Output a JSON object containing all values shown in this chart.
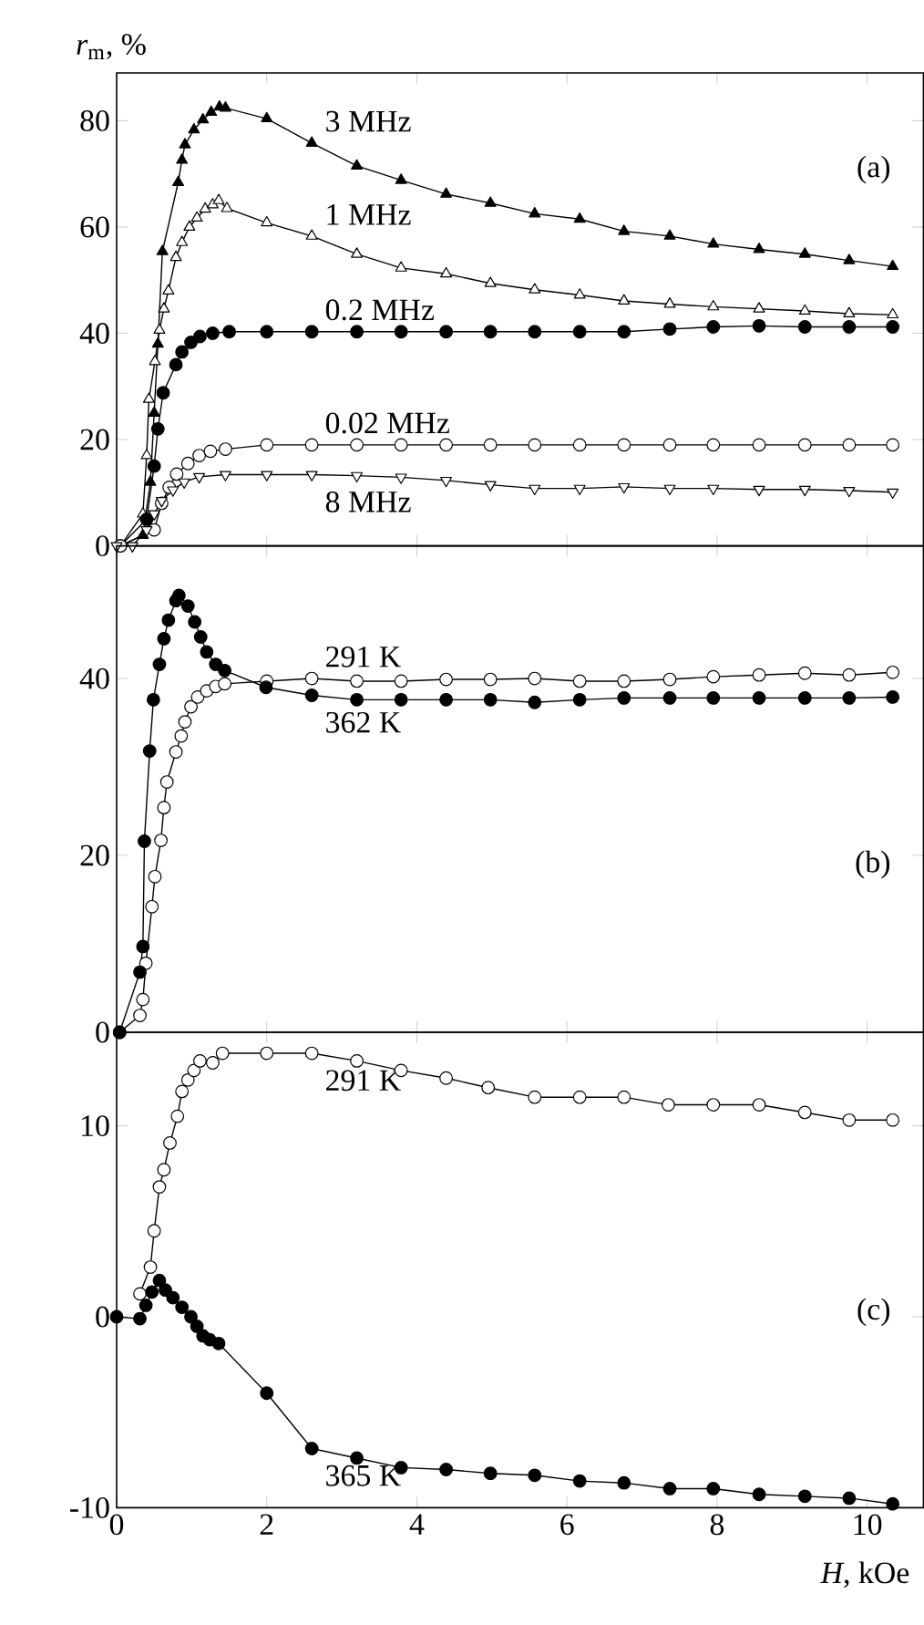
{
  "chart_data": [
    {
      "type": "line",
      "ylabel": "*r*$_{m}$, %",
      "annotations": [
        "(a)"
      ],
      "xlim": [
        0,
        10.75
      ],
      "xticks": [
        0,
        2,
        4,
        6,
        8,
        10
      ],
      "ylim": [
        0,
        89
      ],
      "yticks": [
        0,
        20,
        40,
        60,
        80
      ],
      "tick_labels": "y",
      "series": [
        {
          "name": "3 MHz",
          "color": "#000000",
          "marker": "triangle",
          "x": [
            0.05,
            0.35,
            0.45,
            0.5,
            0.55,
            0.61,
            0.82,
            0.87,
            0.91,
            1.03,
            1.15,
            1.26,
            1.37,
            1.45,
            2.0,
            2.6,
            3.2,
            3.79,
            4.39,
            4.98,
            5.57,
            6.17,
            6.76,
            7.37,
            7.95,
            8.56,
            9.17,
            9.76,
            10.34
          ],
          "values": [
            0,
            2,
            12,
            25,
            38,
            55.4,
            68.4,
            72.6,
            75.5,
            78.3,
            80.2,
            81.6,
            82.6,
            82.4,
            80.4,
            75.8,
            71.5,
            68.8,
            66.2,
            64.5,
            62.5,
            61.5,
            59.2,
            58.3,
            56.8,
            55.8,
            54.9,
            53.7,
            52.6
          ]
        },
        {
          "name": "1 MHz",
          "color": "#000000",
          "marker": "triangle-open",
          "x": [
            0.05,
            0.35,
            0.4,
            0.43,
            0.51,
            0.57,
            0.63,
            0.69,
            0.79,
            0.87,
            0.97,
            1.07,
            1.18,
            1.28,
            1.36,
            1.47,
            2.0,
            2.6,
            3.2,
            3.79,
            4.39,
            4.98,
            5.57,
            6.17,
            6.76,
            7.37,
            7.95,
            8.56,
            9.17,
            9.76,
            10.34
          ],
          "values": [
            0,
            6,
            17,
            27.6,
            34.7,
            40.6,
            44.6,
            48.0,
            54.3,
            57.1,
            60,
            61.7,
            63.4,
            64.2,
            65,
            63.5,
            60.8,
            58.3,
            54.9,
            52.3,
            51.2,
            49.4,
            48.2,
            47.2,
            46.1,
            45.5,
            45.0,
            44.6,
            44.2,
            43.7,
            43.5
          ]
        },
        {
          "name": "0.2 MHz",
          "color": "#000000",
          "marker": "circle",
          "x": [
            0.05,
            0.4,
            0.5,
            0.55,
            0.62,
            0.79,
            0.87,
            0.99,
            1.11,
            1.28,
            1.5,
            2.0,
            2.6,
            3.2,
            3.79,
            4.39,
            4.98,
            5.57,
            6.17,
            6.76,
            7.37,
            7.95,
            8.56,
            9.17,
            9.76,
            10.34
          ],
          "values": [
            0,
            5,
            15,
            22,
            28.8,
            34.1,
            36.5,
            38.3,
            39.4,
            40,
            40.3,
            40.3,
            40.3,
            40.3,
            40.3,
            40.3,
            40.3,
            40.3,
            40.3,
            40.3,
            40.8,
            41.2,
            41.4,
            41.2,
            41.2,
            41.2
          ]
        },
        {
          "name": "0.02 MHz",
          "color": "#000000",
          "marker": "circle-open",
          "x": [
            0.05,
            0.5,
            0.6,
            0.7,
            0.8,
            0.95,
            1.1,
            1.25,
            1.45,
            2.0,
            2.6,
            3.2,
            3.79,
            4.39,
            4.98,
            5.57,
            6.17,
            6.76,
            7.37,
            7.95,
            8.56,
            9.17,
            9.76,
            10.34
          ],
          "values": [
            0,
            3,
            8,
            11,
            13.5,
            15.5,
            17,
            17.8,
            18.2,
            19,
            19,
            19,
            19,
            19,
            19,
            19,
            19,
            19,
            19,
            19,
            19,
            19,
            19,
            19
          ]
        },
        {
          "name": "8 MHz",
          "color": "#000000",
          "marker": "triangle-down-open",
          "x": [
            0.0,
            0.21,
            0.4,
            0.5,
            0.6,
            0.75,
            0.9,
            1.1,
            1.45,
            2.0,
            2.6,
            3.2,
            3.79,
            4.39,
            4.98,
            5.57,
            6.17,
            6.76,
            7.37,
            7.95,
            8.56,
            9.17,
            9.76,
            10.34
          ],
          "values": [
            0,
            0,
            3,
            6,
            8.5,
            10.5,
            12,
            13,
            13.4,
            13.4,
            13.4,
            13.2,
            12.9,
            12.3,
            11.5,
            10.8,
            10.8,
            11.1,
            10.8,
            10.8,
            10.6,
            10.6,
            10.4,
            10.1
          ]
        }
      ]
    },
    {
      "type": "line",
      "annotations": [
        "(b)"
      ],
      "xlim": [
        0,
        10.75
      ],
      "xticks": [
        0,
        2,
        4,
        6,
        8,
        10
      ],
      "ylim": [
        0,
        55
      ],
      "yticks": [
        0,
        20,
        40
      ],
      "tick_labels": "y",
      "series": [
        {
          "name": "291 K",
          "color": "#000000",
          "marker": "circle-open",
          "x": [
            0.04,
            0.31,
            0.35,
            0.39,
            0.47,
            0.51,
            0.59,
            0.63,
            0.67,
            0.79,
            0.86,
            0.91,
            0.99,
            1.08,
            1.2,
            1.32,
            1.44,
            2.0,
            2.6,
            3.2,
            3.79,
            4.39,
            4.98,
            5.57,
            6.17,
            6.76,
            7.37,
            7.95,
            8.56,
            9.17,
            9.76,
            10.34
          ],
          "values": [
            0,
            1.9,
            3.7,
            7.8,
            14.2,
            17.6,
            21.7,
            25.4,
            28.3,
            31.7,
            33.5,
            35.1,
            36.8,
            37.9,
            38.6,
            39.1,
            39.4,
            39.7,
            40,
            39.7,
            39.7,
            39.9,
            39.9,
            40,
            39.7,
            39.7,
            39.9,
            40.2,
            40.4,
            40.6,
            40.4,
            40.7
          ]
        },
        {
          "name": "362 K",
          "color": "#000000",
          "marker": "circle",
          "x": [
            0.04,
            0.31,
            0.35,
            0.37,
            0.44,
            0.49,
            0.57,
            0.63,
            0.69,
            0.79,
            0.83,
            0.95,
            1.04,
            1.12,
            1.2,
            1.32,
            1.44,
            1.99,
            2.6,
            3.2,
            3.79,
            4.39,
            4.98,
            5.57,
            6.17,
            6.76,
            7.37,
            7.95,
            8.56,
            9.17,
            9.76,
            10.34
          ],
          "values": [
            0,
            6.8,
            9.7,
            21.6,
            31.8,
            37.6,
            41.6,
            44.5,
            46.6,
            48.8,
            49.4,
            48.2,
            46.4,
            44.7,
            43,
            41.6,
            40.9,
            39.0,
            38.1,
            37.6,
            37.6,
            37.6,
            37.6,
            37.3,
            37.6,
            37.8,
            37.8,
            37.8,
            37.8,
            37.8,
            37.8,
            37.9
          ]
        }
      ]
    },
    {
      "type": "line",
      "xlabel": "*H*, kOe",
      "annotations": [
        "(c)"
      ],
      "xlim": [
        0,
        10.75
      ],
      "xticks": [
        0,
        2,
        4,
        6,
        8,
        10
      ],
      "ylim": [
        -10,
        14.9
      ],
      "yticks": [
        -10,
        0,
        10
      ],
      "series": [
        {
          "name": "291 K",
          "color": "#000000",
          "marker": "circle-open",
          "x": [
            0.31,
            0.45,
            0.5,
            0.57,
            0.63,
            0.71,
            0.81,
            0.87,
            0.95,
            1.03,
            1.11,
            1.28,
            1.41,
            2.0,
            2.6,
            3.2,
            3.79,
            4.39,
            4.95,
            5.57,
            6.17,
            6.76,
            7.35,
            7.95,
            8.56,
            9.17,
            9.76,
            10.34
          ],
          "values": [
            1.2,
            2.6,
            4.5,
            6.8,
            7.7,
            9.1,
            10.5,
            11.8,
            12.4,
            12.9,
            13.4,
            13.3,
            13.8,
            13.8,
            13.8,
            13.4,
            12.9,
            12.5,
            12.0,
            11.5,
            11.5,
            11.5,
            11.1,
            11.1,
            11.1,
            10.7,
            10.3,
            10.3
          ]
        },
        {
          "name": "365 K",
          "color": "#000000",
          "marker": "circle",
          "x": [
            0.0,
            0.31,
            0.39,
            0.47,
            0.57,
            0.65,
            0.75,
            0.87,
            0.99,
            1.07,
            1.15,
            1.24,
            1.36,
            2.0,
            2.6,
            3.2,
            3.79,
            4.39,
            4.98,
            5.57,
            6.17,
            6.76,
            7.37,
            7.95,
            8.56,
            9.17,
            9.76,
            10.34
          ],
          "values": [
            0,
            -0.1,
            0.6,
            1.3,
            1.9,
            1.4,
            1.0,
            0.5,
            0,
            -0.5,
            -1.0,
            -1.2,
            -1.4,
            -4.0,
            -6.9,
            -7.4,
            -7.9,
            -8.0,
            -8.2,
            -8.3,
            -8.6,
            -8.7,
            -9.0,
            -9.0,
            -9.3,
            -9.4,
            -9.5,
            -9.8
          ]
        }
      ]
    }
  ]
}
